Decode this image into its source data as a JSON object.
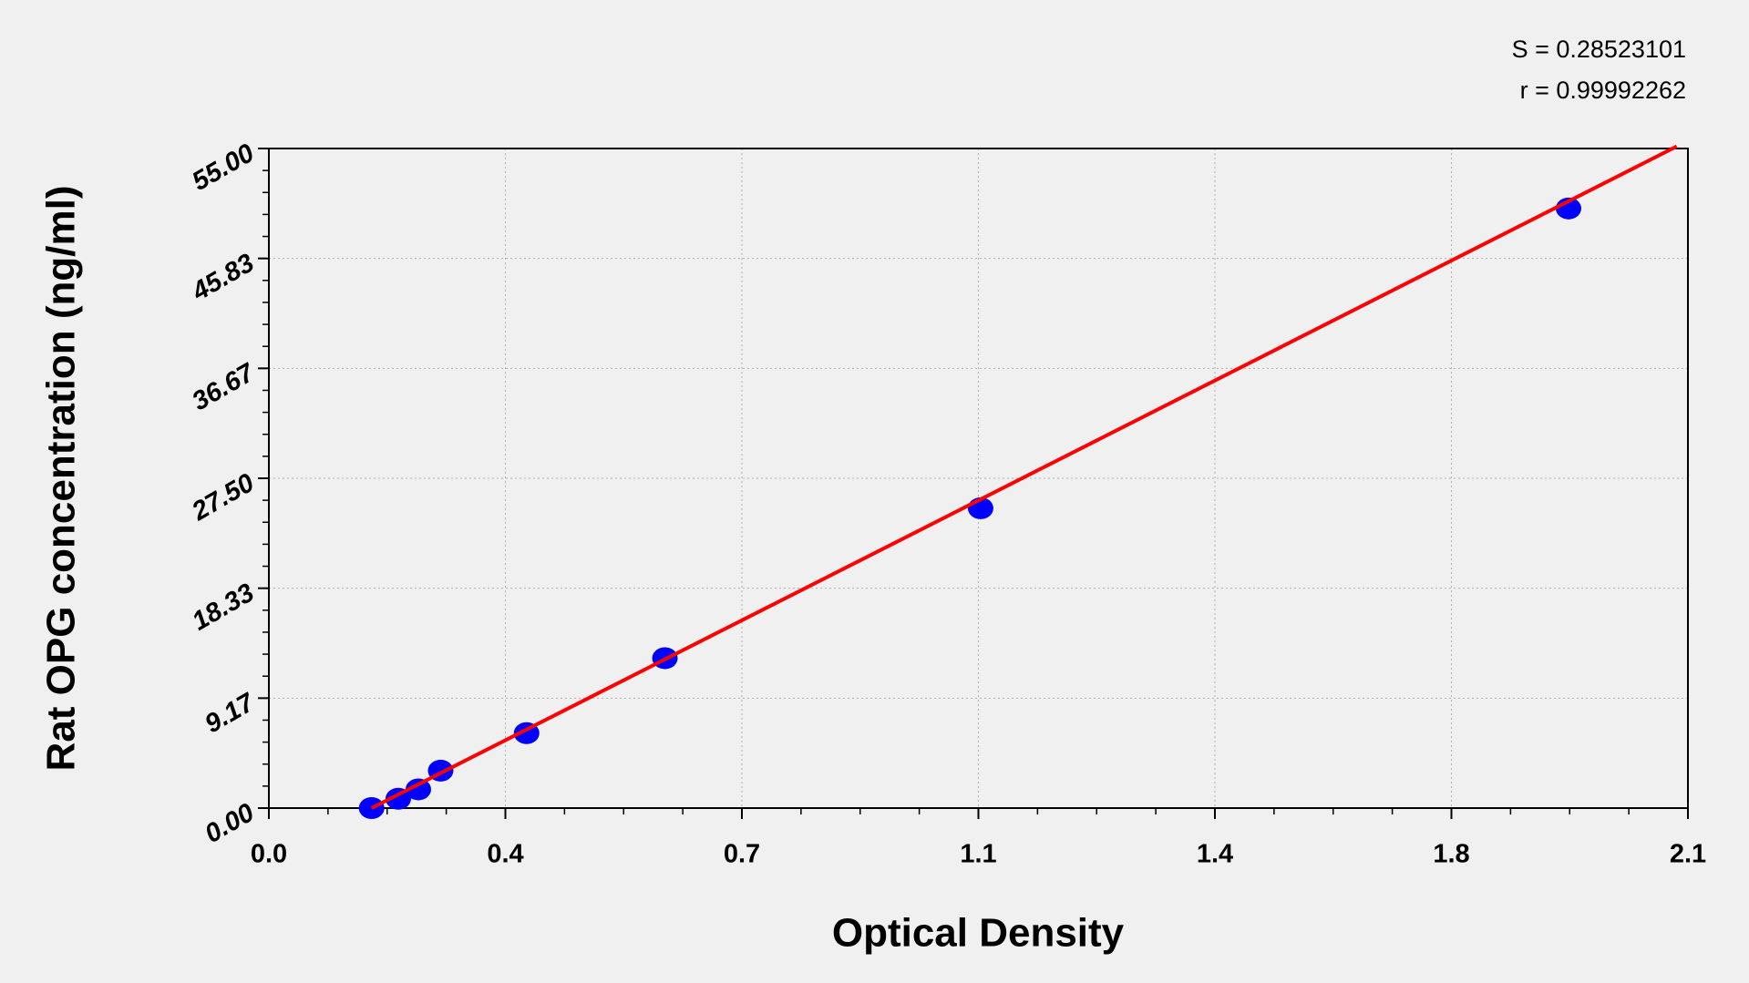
{
  "chart_data": {
    "type": "scatter",
    "annotations": [
      "S = 0.28523101",
      "r = 0.99992262"
    ],
    "xlabel": "Optical Density",
    "ylabel": "Rat OPG concentration (ng/ml)",
    "x": [
      0.152,
      0.1915,
      0.2212,
      0.2542,
      0.3814,
      0.5861,
      1.0533,
      1.9233
    ],
    "values": [
      0,
      0.78,
      1.56,
      3.12,
      6.25,
      12.5,
      25,
      50
    ],
    "color": "#0000ff",
    "fit_line": {
      "x": [
        0.152,
        2.0835
      ],
      "values": [
        0,
        55.18
      ],
      "color": "#ff0000"
    },
    "xlim": [
      0,
      2.1
    ],
    "ylim": [
      0,
      55
    ],
    "xticks": [
      {
        "value": 0,
        "label": "0.0"
      },
      {
        "value": 0.35,
        "label": "0.4"
      },
      0.7,
      {
        "value": 1.05,
        "label": "1.1"
      },
      1.4,
      {
        "value": 1.75,
        "label": "1.8"
      },
      2.1
    ],
    "yticks": [
      {
        "value": 0,
        "label": "0.00"
      },
      {
        "value": 9.1667,
        "label": "9.17"
      },
      {
        "value": 18.333,
        "label": "18.33"
      },
      {
        "value": 27.5,
        "label": "27.50"
      },
      {
        "value": 36.667,
        "label": "36.67"
      },
      {
        "value": 45.833,
        "label": "45.83"
      },
      {
        "value": 55,
        "label": "55.00"
      }
    ],
    "grid": true
  }
}
